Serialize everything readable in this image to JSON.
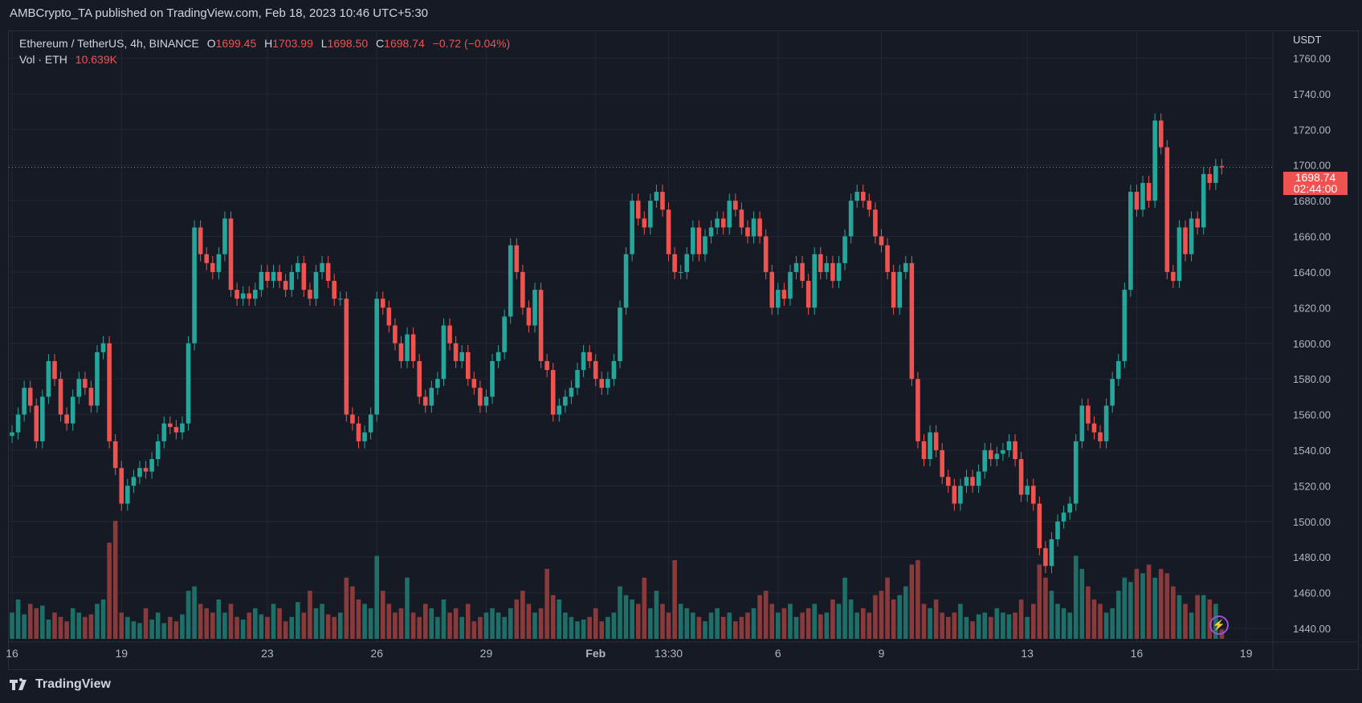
{
  "publisher_line": "AMBCrypto_TA published on TradingView.com, Feb 18, 2023 10:46 UTC+5:30",
  "legend": {
    "symbol": "Ethereum / TetherUS, 4h, BINANCE",
    "o_label": "O",
    "o": "1699.45",
    "h_label": "H",
    "h": "1703.99",
    "l_label": "L",
    "l": "1698.50",
    "c_label": "C",
    "c": "1698.74",
    "change": "−0.72 (−0.04%)",
    "vol_label": "Vol · ETH",
    "vol": "10.639K"
  },
  "price_box": {
    "price": "1698.74",
    "countdown": "02:44:00"
  },
  "footer": {
    "brand": "TradingView"
  },
  "colors": {
    "up": "#26a69a",
    "down": "#ef5350",
    "background": "#161a25",
    "grid": "#232734"
  },
  "chart_data": {
    "type": "candlestick",
    "title": "Ethereum / TetherUS, 4h, BINANCE",
    "ylabel": "USDT",
    "ylim": [
      1440,
      1760
    ],
    "yticks": [
      "1760.00",
      "1740.00",
      "1720.00",
      "1700.00",
      "1680.00",
      "1660.00",
      "1640.00",
      "1620.00",
      "1600.00",
      "1580.00",
      "1560.00",
      "1540.00",
      "1520.00",
      "1500.00",
      "1480.00",
      "1460.00",
      "1440.00"
    ],
    "xticks": [
      "16",
      "19",
      "23",
      "26",
      "29",
      "Feb",
      "13:30",
      "6",
      "9",
      "13",
      "16",
      "19"
    ],
    "grid": true,
    "first_open": 1548,
    "close": [
      1550,
      1560,
      1575,
      1565,
      1545,
      1570,
      1590,
      1580,
      1560,
      1555,
      1570,
      1580,
      1575,
      1565,
      1595,
      1600,
      1545,
      1530,
      1510,
      1520,
      1525,
      1530,
      1528,
      1535,
      1545,
      1555,
      1553,
      1550,
      1555,
      1600,
      1665,
      1650,
      1645,
      1640,
      1650,
      1670,
      1630,
      1625,
      1628,
      1625,
      1630,
      1640,
      1635,
      1640,
      1635,
      1630,
      1640,
      1645,
      1630,
      1625,
      1640,
      1645,
      1635,
      1625,
      1625,
      1560,
      1555,
      1545,
      1550,
      1560,
      1625,
      1620,
      1610,
      1600,
      1590,
      1605,
      1590,
      1570,
      1565,
      1575,
      1580,
      1610,
      1600,
      1590,
      1595,
      1580,
      1575,
      1565,
      1570,
      1590,
      1595,
      1615,
      1655,
      1640,
      1620,
      1610,
      1630,
      1590,
      1585,
      1560,
      1565,
      1570,
      1575,
      1585,
      1595,
      1590,
      1580,
      1575,
      1580,
      1590,
      1620,
      1650,
      1680,
      1670,
      1665,
      1680,
      1685,
      1675,
      1650,
      1640,
      1640,
      1650,
      1665,
      1650,
      1660,
      1665,
      1670,
      1665,
      1680,
      1675,
      1665,
      1660,
      1670,
      1660,
      1640,
      1620,
      1630,
      1625,
      1640,
      1645,
      1635,
      1620,
      1650,
      1640,
      1645,
      1635,
      1645,
      1660,
      1680,
      1685,
      1680,
      1675,
      1660,
      1655,
      1640,
      1620,
      1640,
      1645,
      1580,
      1545,
      1535,
      1550,
      1540,
      1525,
      1520,
      1510,
      1520,
      1525,
      1520,
      1528,
      1540,
      1535,
      1538,
      1540,
      1545,
      1535,
      1515,
      1520,
      1510,
      1485,
      1475,
      1490,
      1500,
      1505,
      1510,
      1545,
      1565,
      1555,
      1550,
      1545,
      1565,
      1580,
      1590,
      1630,
      1685,
      1675,
      1690,
      1680,
      1725,
      1710,
      1640,
      1635,
      1665,
      1650,
      1670,
      1665,
      1695,
      1690,
      1699.45,
      1698.74
    ],
    "volume_k": [
      30,
      45,
      28,
      40,
      35,
      38,
      22,
      30,
      25,
      20,
      35,
      30,
      25,
      28,
      40,
      45,
      110,
      135,
      30,
      25,
      20,
      18,
      35,
      22,
      30,
      18,
      25,
      20,
      28,
      55,
      60,
      40,
      35,
      30,
      45,
      30,
      40,
      25,
      22,
      30,
      35,
      28,
      25,
      40,
      35,
      20,
      25,
      42,
      30,
      55,
      35,
      40,
      28,
      25,
      30,
      70,
      60,
      45,
      40,
      35,
      95,
      55,
      40,
      30,
      35,
      70,
      30,
      25,
      40,
      35,
      25,
      45,
      30,
      35,
      25,
      40,
      20,
      25,
      30,
      35,
      30,
      25,
      35,
      45,
      55,
      40,
      30,
      35,
      80,
      50,
      45,
      30,
      25,
      20,
      22,
      25,
      35,
      20,
      25,
      30,
      60,
      50,
      45,
      40,
      70,
      35,
      55,
      40,
      30,
      90,
      40,
      35,
      30,
      25,
      20,
      30,
      35,
      25,
      30,
      20,
      25,
      30,
      35,
      50,
      55,
      40,
      30,
      35,
      40,
      25,
      30,
      35,
      40,
      28,
      30,
      45,
      40,
      70,
      45,
      30,
      35,
      30,
      50,
      55,
      70,
      45,
      50,
      60,
      85,
      90,
      40,
      35,
      45,
      30,
      25,
      30,
      40,
      25,
      20,
      28,
      30,
      25,
      35,
      30,
      28,
      30,
      45,
      25,
      40,
      85,
      70,
      55,
      40,
      35,
      30,
      95,
      80,
      60,
      45,
      40,
      30,
      35,
      55,
      70,
      65,
      80,
      75,
      85,
      70,
      80,
      75,
      60,
      50,
      40,
      30,
      50,
      50,
      45,
      40,
      10.639
    ]
  }
}
